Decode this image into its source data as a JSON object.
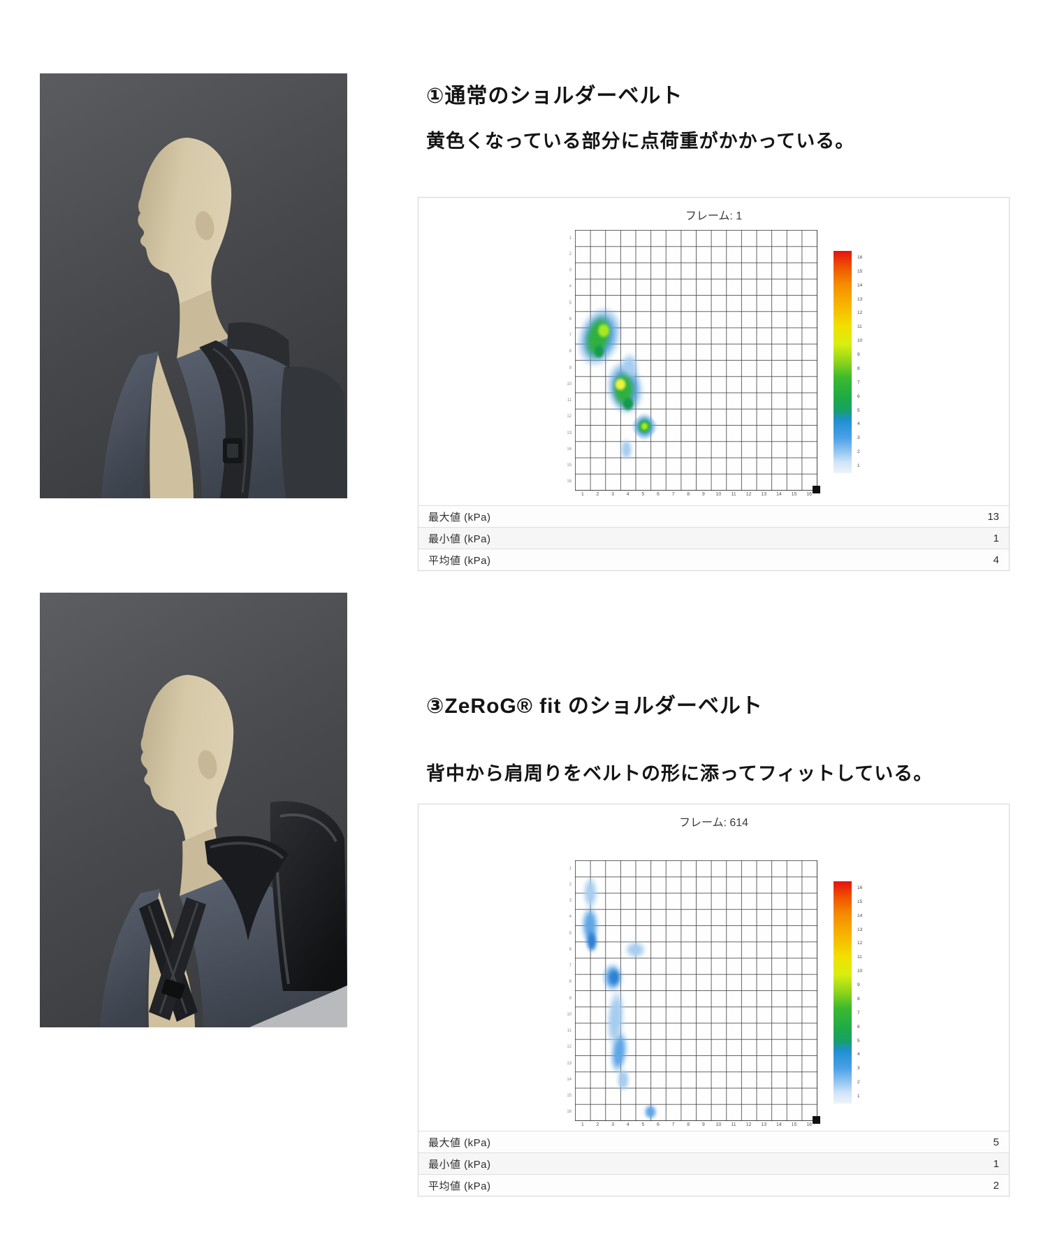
{
  "sections": [
    {
      "title": "①通常のショルダーベルト",
      "subtitle": "黄色くなっている部分に点荷重がかかっている。",
      "photo": "mannequin wearing backpack with normal shoulder belt"
    },
    {
      "title": "③ZeRoG® fit のショルダーベルト",
      "subtitle": "背中から肩周りをベルトの形に添ってフィットしている。",
      "photo": "mannequin wearing backpack with ZeRoG fit shoulder belt"
    }
  ],
  "chart_data": [
    {
      "type": "heatmap",
      "title": "フレーム: 1",
      "grid": {
        "cols": 16,
        "rows": 16
      },
      "x_ticks": [
        "1",
        "2",
        "3",
        "4",
        "5",
        "6",
        "7",
        "8",
        "9",
        "10",
        "11",
        "12",
        "13",
        "14",
        "15",
        "16"
      ],
      "y_ticks": [
        "1",
        "2",
        "3",
        "4",
        "5",
        "6",
        "7",
        "8",
        "9",
        "10",
        "11",
        "12",
        "13",
        "14",
        "15",
        "16"
      ],
      "unit": "kPa",
      "stats": [
        {
          "label": "最大値 (kPa)",
          "value": "13"
        },
        {
          "label": "最小値 (kPa)",
          "value": "1"
        },
        {
          "label": "平均値 (kPa)",
          "value": "4"
        }
      ],
      "palette": {
        "halo": "#58a0e0",
        "lightblue": "#a6cdf0",
        "midblue": "#5fa6e6",
        "darkblue": "#2e7fd2",
        "green": "#2fb040",
        "deepgreen": "#149a4e",
        "bright": "#a8e822",
        "yellow": "#eef23c"
      },
      "colorbar": {
        "stops": [
          {
            "pos": 0,
            "color": "#e51212"
          },
          {
            "pos": 0.07,
            "color": "#ef5200"
          },
          {
            "pos": 0.15,
            "color": "#f58c00"
          },
          {
            "pos": 0.25,
            "color": "#f6b800"
          },
          {
            "pos": 0.34,
            "color": "#f2e000"
          },
          {
            "pos": 0.42,
            "color": "#d8ee10"
          },
          {
            "pos": 0.5,
            "color": "#8ed41c"
          },
          {
            "pos": 0.57,
            "color": "#3cba2e"
          },
          {
            "pos": 0.66,
            "color": "#1faa46"
          },
          {
            "pos": 0.72,
            "color": "#17a06a"
          },
          {
            "pos": 0.76,
            "color": "#1e8fd0"
          },
          {
            "pos": 0.84,
            "color": "#4aa0e8"
          },
          {
            "pos": 0.9,
            "color": "#8fc4f0"
          },
          {
            "pos": 0.95,
            "color": "#cfe3f8"
          },
          {
            "pos": 1,
            "color": "#eef3f8"
          }
        ],
        "labels": [
          "16",
          "15",
          "14",
          "13",
          "12",
          "11",
          "10",
          "9",
          "8",
          "7",
          "6",
          "5",
          "4",
          "3",
          "2",
          "1"
        ]
      },
      "blobs": [
        {
          "c": 1.6,
          "r": 6.6,
          "w": 3.6,
          "h": 4.9,
          "rot": 18,
          "color": "halo",
          "blur": 3
        },
        {
          "c": 3.3,
          "r": 9.7,
          "w": 3.1,
          "h": 4.3,
          "rot": -8,
          "color": "halo",
          "blur": 3
        },
        {
          "c": 3.6,
          "r": 8.4,
          "w": 1.5,
          "h": 2.2,
          "rot": 0,
          "color": "lightblue",
          "blur": 3
        },
        {
          "c": 3.4,
          "r": 13.5,
          "w": 1.1,
          "h": 1.7,
          "rot": 0,
          "color": "lightblue",
          "blur": 2
        },
        {
          "c": 4.6,
          "r": 12.1,
          "w": 2.1,
          "h": 2.1,
          "rot": 0,
          "color": "halo",
          "blur": 2,
          "shape": "diamond"
        },
        {
          "c": 1.5,
          "r": 6.6,
          "w": 2.2,
          "h": 3.7,
          "rot": 15,
          "color": "green",
          "blur": 2
        },
        {
          "c": 1.9,
          "r": 6.2,
          "w": 1.2,
          "h": 1.3,
          "rot": 0,
          "color": "bright",
          "blur": 1
        },
        {
          "c": 1.6,
          "r": 7.5,
          "w": 1.0,
          "h": 1.2,
          "rot": 0,
          "color": "deepgreen",
          "blur": 1
        },
        {
          "c": 3.2,
          "r": 9.8,
          "w": 2.0,
          "h": 2.9,
          "rot": 0,
          "color": "green",
          "blur": 2
        },
        {
          "c": 3.0,
          "r": 9.5,
          "w": 1.1,
          "h": 1.1,
          "rot": 0,
          "color": "yellow",
          "blur": 1
        },
        {
          "c": 3.5,
          "r": 10.7,
          "w": 1.1,
          "h": 1.2,
          "rot": 0,
          "color": "deepgreen",
          "blur": 1
        },
        {
          "c": 4.6,
          "r": 12.1,
          "w": 1.3,
          "h": 1.3,
          "rot": 0,
          "color": "green",
          "blur": 1,
          "shape": "diamond"
        },
        {
          "c": 4.6,
          "r": 12.1,
          "w": 0.7,
          "h": 0.7,
          "rot": 0,
          "color": "bright",
          "blur": 1
        }
      ]
    },
    {
      "type": "heatmap",
      "title": "フレーム: 614",
      "grid": {
        "cols": 16,
        "rows": 16
      },
      "x_ticks": [
        "1",
        "2",
        "3",
        "4",
        "5",
        "6",
        "7",
        "8",
        "9",
        "10",
        "11",
        "12",
        "13",
        "14",
        "15",
        "16"
      ],
      "y_ticks": [
        "1",
        "2",
        "3",
        "4",
        "5",
        "6",
        "7",
        "8",
        "9",
        "10",
        "11",
        "12",
        "13",
        "14",
        "15",
        "16"
      ],
      "unit": "kPa",
      "stats": [
        {
          "label": "最大値 (kPa)",
          "value": "5"
        },
        {
          "label": "最小値 (kPa)",
          "value": "1"
        },
        {
          "label": "平均値 (kPa)",
          "value": "2"
        }
      ],
      "palette": {
        "halo": "#58a0e0",
        "lightblue": "#a6cdf0",
        "midblue": "#5fa6e6",
        "darkblue": "#2e7fd2",
        "green": "#2fb040",
        "deepgreen": "#149a4e",
        "bright": "#a8e822",
        "yellow": "#eef23c"
      },
      "colorbar": {
        "stops": [
          {
            "pos": 0,
            "color": "#e51212"
          },
          {
            "pos": 0.07,
            "color": "#ef5200"
          },
          {
            "pos": 0.15,
            "color": "#f58c00"
          },
          {
            "pos": 0.25,
            "color": "#f6b800"
          },
          {
            "pos": 0.34,
            "color": "#f2e000"
          },
          {
            "pos": 0.42,
            "color": "#d8ee10"
          },
          {
            "pos": 0.5,
            "color": "#8ed41c"
          },
          {
            "pos": 0.57,
            "color": "#3cba2e"
          },
          {
            "pos": 0.66,
            "color": "#1faa46"
          },
          {
            "pos": 0.72,
            "color": "#17a06a"
          },
          {
            "pos": 0.76,
            "color": "#1e8fd0"
          },
          {
            "pos": 0.84,
            "color": "#4aa0e8"
          },
          {
            "pos": 0.9,
            "color": "#8fc4f0"
          },
          {
            "pos": 0.95,
            "color": "#cfe3f8"
          },
          {
            "pos": 1,
            "color": "#eef3f8"
          }
        ],
        "labels": [
          "16",
          "15",
          "14",
          "13",
          "12",
          "11",
          "10",
          "9",
          "8",
          "7",
          "6",
          "5",
          "4",
          "3",
          "2",
          "1"
        ]
      },
      "blobs": [
        {
          "c": 1.0,
          "r": 2.0,
          "w": 1.2,
          "h": 2.6,
          "rot": 0,
          "color": "lightblue",
          "blur": 3
        },
        {
          "c": 1.0,
          "r": 4.0,
          "w": 1.4,
          "h": 3.0,
          "rot": 0,
          "color": "midblue",
          "blur": 3
        },
        {
          "c": 1.1,
          "r": 5.0,
          "w": 1.0,
          "h": 1.8,
          "rot": 0,
          "color": "darkblue",
          "blur": 2
        },
        {
          "c": 4.0,
          "r": 5.5,
          "w": 1.8,
          "h": 1.4,
          "rot": 0,
          "color": "lightblue",
          "blur": 3
        },
        {
          "c": 2.5,
          "r": 7.2,
          "w": 1.7,
          "h": 2.3,
          "rot": 0,
          "color": "midblue",
          "blur": 3
        },
        {
          "c": 2.6,
          "r": 7.2,
          "w": 1.0,
          "h": 1.3,
          "rot": 0,
          "color": "darkblue",
          "blur": 2
        },
        {
          "c": 2.7,
          "r": 9.7,
          "w": 1.5,
          "h": 4.8,
          "rot": 4,
          "color": "lightblue",
          "blur": 3
        },
        {
          "c": 2.9,
          "r": 11.8,
          "w": 1.4,
          "h": 3.4,
          "rot": 7,
          "color": "midblue",
          "blur": 3
        },
        {
          "c": 3.2,
          "r": 13.5,
          "w": 1.1,
          "h": 1.9,
          "rot": 0,
          "color": "lightblue",
          "blur": 2
        },
        {
          "c": 5.0,
          "r": 15.5,
          "w": 1.1,
          "h": 1.2,
          "rot": 0,
          "color": "midblue",
          "blur": 2
        }
      ]
    }
  ]
}
